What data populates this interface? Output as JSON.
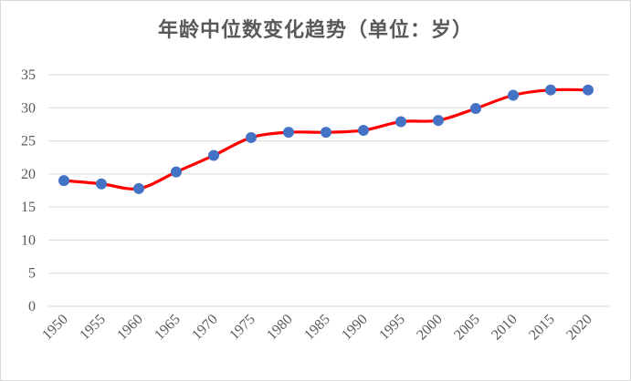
{
  "chart_data": {
    "type": "line",
    "title": "年龄中位数变化趋势（单位：岁）",
    "xlabel": "",
    "ylabel": "",
    "categories": [
      "1950",
      "1955",
      "1960",
      "1965",
      "1970",
      "1975",
      "1980",
      "1985",
      "1990",
      "1995",
      "2000",
      "2005",
      "2010",
      "2015",
      "2020"
    ],
    "series": [
      {
        "values": [
          19.0,
          18.5,
          17.8,
          20.3,
          22.8,
          25.5,
          26.3,
          26.3,
          26.6,
          27.9,
          28.1,
          29.9,
          31.9,
          32.7,
          32.7
        ]
      }
    ],
    "ylim": [
      0,
      35
    ],
    "yticks": [
      "0",
      "5",
      "10",
      "15",
      "20",
      "25",
      "30",
      "35"
    ],
    "grid": true,
    "line_color": "#ff0000",
    "marker_color": "#4472c4",
    "smooth": true
  }
}
